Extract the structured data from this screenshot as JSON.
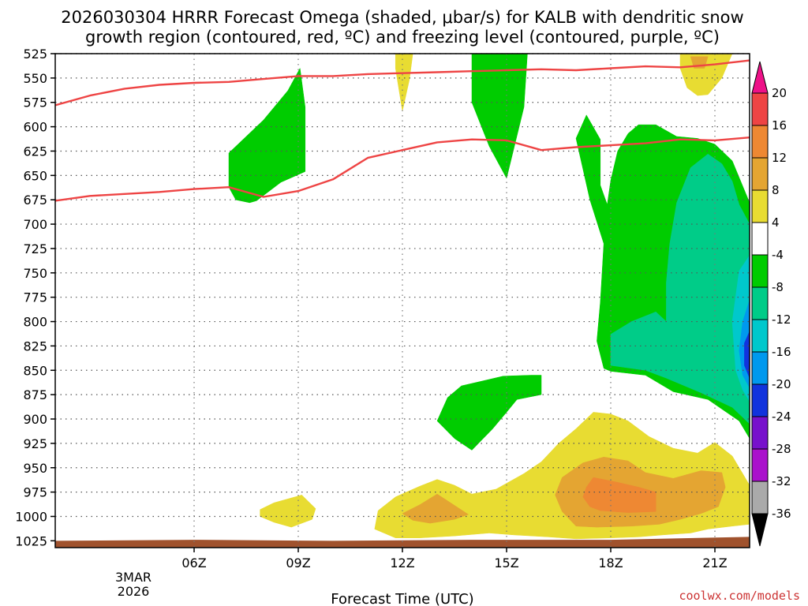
{
  "chart_data": {
    "type": "contour",
    "title_lines": [
      "2026030304 HRRR Forecast Omega (shaded, μbar/s) for KALB with dendritic snow",
      "growth region (contoured, red, ºC) and freezing level (contoured, purple, ºC)"
    ],
    "xlabel": "Forecast Time (UTC)",
    "x_ticks": [
      "06Z",
      "09Z",
      "12Z",
      "15Z",
      "18Z",
      "21Z"
    ],
    "x_tick_hours": [
      6,
      9,
      12,
      15,
      18,
      21
    ],
    "x_range_hours": [
      2,
      22
    ],
    "date_label_lines": [
      "3MAR",
      "2026"
    ],
    "y_levels_hpa": [
      525,
      550,
      575,
      600,
      625,
      650,
      675,
      700,
      725,
      750,
      775,
      800,
      825,
      850,
      875,
      900,
      925,
      950,
      975,
      1000,
      1025
    ],
    "y_range_hpa": [
      525,
      1032
    ],
    "grid": true,
    "colorbar": {
      "labels": [
        "20",
        "16",
        "12",
        "8",
        "4",
        "-4",
        "-8",
        "-12",
        "-16",
        "-20",
        "-24",
        "-28",
        "-32",
        "-36"
      ],
      "bins": [
        {
          "range": [
            16,
            20
          ],
          "color": "#ee4444"
        },
        {
          "range": [
            12,
            16
          ],
          "color": "#ee8833"
        },
        {
          "range": [
            8,
            12
          ],
          "color": "#e4a532"
        },
        {
          "range": [
            4,
            8
          ],
          "color": "#e8dc32"
        },
        {
          "range": [
            -4,
            4
          ],
          "color": "#ffffff"
        },
        {
          "range": [
            -8,
            -4
          ],
          "color": "#00cc00"
        },
        {
          "range": [
            -12,
            -8
          ],
          "color": "#00cc88"
        },
        {
          "range": [
            -16,
            -12
          ],
          "color": "#00c8cc"
        },
        {
          "range": [
            -20,
            -16
          ],
          "color": "#0099ee"
        },
        {
          "range": [
            -24,
            -20
          ],
          "color": "#1133dd"
        },
        {
          "range": [
            -28,
            -24
          ],
          "color": "#7711cc"
        },
        {
          "range": [
            -32,
            -28
          ],
          "color": "#aa11cc"
        },
        {
          "range": [
            -36,
            -32
          ],
          "color": "#aaaaaa"
        }
      ],
      "top_arrow_color": "#ee1188",
      "bottom_arrow_color": "#000000"
    },
    "regions": [
      {
        "name": "green-upper-left",
        "value_bin": "-8 to -4",
        "color": "#00cc00",
        "points": [
          [
            7.0,
            662
          ],
          [
            7.0,
            627
          ],
          [
            8.0,
            593
          ],
          [
            8.7,
            563
          ],
          [
            9.05,
            540
          ],
          [
            9.2,
            580
          ],
          [
            9.2,
            646
          ],
          [
            8.5,
            657
          ],
          [
            7.8,
            676
          ],
          [
            7.6,
            678
          ],
          [
            7.2,
            675
          ]
        ]
      },
      {
        "name": "yellow-upper-12z",
        "value_bin": "4 to 8",
        "color": "#e8dc32",
        "points": [
          [
            11.8,
            525
          ],
          [
            12.3,
            525
          ],
          [
            12.2,
            552
          ],
          [
            12.0,
            584
          ],
          [
            11.8,
            540
          ]
        ]
      },
      {
        "name": "green-upper-15z",
        "value_bin": "-8 to -4",
        "color": "#00cc00",
        "points": [
          [
            14.0,
            525
          ],
          [
            15.6,
            525
          ],
          [
            15.5,
            580
          ],
          [
            15.0,
            653
          ],
          [
            14.5,
            620
          ],
          [
            14.0,
            575
          ]
        ]
      },
      {
        "name": "yellow-upper-20z",
        "value_bin": "4 to 8",
        "color": "#e8dc32",
        "points": [
          [
            20.0,
            525
          ],
          [
            21.5,
            525
          ],
          [
            21.2,
            550
          ],
          [
            20.8,
            567
          ],
          [
            20.5,
            568
          ],
          [
            20.2,
            560
          ],
          [
            20.0,
            540
          ]
        ]
      },
      {
        "name": "orange-upper-20z",
        "value_bin": "8 to 12",
        "color": "#e4a532",
        "points": [
          [
            20.3,
            528
          ],
          [
            20.8,
            528
          ],
          [
            20.7,
            540
          ],
          [
            20.4,
            540
          ]
        ]
      },
      {
        "name": "green-right",
        "value_bin": "-8 to -4",
        "color": "#00cc00",
        "points": [
          [
            17.0,
            612
          ],
          [
            17.3,
            588
          ],
          [
            17.7,
            613
          ],
          [
            17.7,
            660
          ],
          [
            17.9,
            680
          ],
          [
            18.0,
            655
          ],
          [
            18.2,
            625
          ],
          [
            18.5,
            607
          ],
          [
            18.8,
            598
          ],
          [
            19.3,
            598
          ],
          [
            19.9,
            610
          ],
          [
            20.5,
            612
          ],
          [
            21.0,
            618
          ],
          [
            21.5,
            635
          ],
          [
            22.0,
            678
          ],
          [
            22.0,
            920
          ],
          [
            21.7,
            902
          ],
          [
            20.8,
            880
          ],
          [
            19.8,
            872
          ],
          [
            19.0,
            855
          ],
          [
            18.0,
            851
          ],
          [
            17.8,
            848
          ],
          [
            17.6,
            820
          ],
          [
            17.7,
            780
          ],
          [
            17.8,
            720
          ],
          [
            17.4,
            675
          ]
        ]
      },
      {
        "name": "teal-right",
        "value_bin": "-12 to -8",
        "color": "#00cc88",
        "points": [
          [
            19.6,
            800
          ],
          [
            19.3,
            790
          ],
          [
            18.6,
            800
          ],
          [
            18.0,
            813
          ],
          [
            18.0,
            845
          ],
          [
            19.0,
            850
          ],
          [
            19.6,
            858
          ],
          [
            20.6,
            873
          ],
          [
            21.5,
            888
          ],
          [
            22.0,
            905
          ],
          [
            22.0,
            700
          ],
          [
            21.7,
            680
          ],
          [
            21.5,
            656
          ],
          [
            21.2,
            638
          ],
          [
            20.8,
            628
          ],
          [
            20.3,
            642
          ],
          [
            19.9,
            678
          ],
          [
            19.7,
            720
          ],
          [
            19.6,
            760
          ]
        ]
      },
      {
        "name": "cyan-right",
        "value_bin": "-16 to -12",
        "color": "#00c8cc",
        "points": [
          [
            22.0,
            732
          ],
          [
            21.7,
            748
          ],
          [
            21.5,
            800
          ],
          [
            21.6,
            850
          ],
          [
            21.8,
            870
          ],
          [
            22.0,
            882
          ]
        ]
      },
      {
        "name": "blue-right",
        "value_bin": "-20 to -16",
        "color": "#0099ee",
        "points": [
          [
            22.0,
            778
          ],
          [
            21.8,
            800
          ],
          [
            21.7,
            830
          ],
          [
            21.8,
            855
          ],
          [
            22.0,
            868
          ]
        ]
      },
      {
        "name": "navy-right",
        "value_bin": "-24 to -20",
        "color": "#1133dd",
        "points": [
          [
            22.0,
            810
          ],
          [
            21.85,
            822
          ],
          [
            21.85,
            845
          ],
          [
            22.0,
            858
          ]
        ]
      },
      {
        "name": "green-lower-mid",
        "value_bin": "-8 to -4",
        "color": "#00cc00",
        "points": [
          [
            13.0,
            902
          ],
          [
            13.3,
            878
          ],
          [
            13.7,
            866
          ],
          [
            14.3,
            861
          ],
          [
            14.9,
            856
          ],
          [
            15.7,
            855
          ],
          [
            16.0,
            855
          ],
          [
            16.0,
            875
          ],
          [
            15.3,
            880
          ],
          [
            15.0,
            893
          ],
          [
            14.6,
            910
          ],
          [
            14.0,
            932
          ],
          [
            13.5,
            920
          ]
        ]
      },
      {
        "name": "yellow-low-left",
        "value_bin": "4 to 8",
        "color": "#e8dc32",
        "points": [
          [
            7.9,
            993
          ],
          [
            8.3,
            986
          ],
          [
            9.0,
            979
          ],
          [
            9.1,
            978
          ],
          [
            9.5,
            992
          ],
          [
            9.4,
            1003
          ],
          [
            8.8,
            1011
          ],
          [
            8.3,
            1006
          ],
          [
            7.9,
            1000
          ]
        ]
      },
      {
        "name": "yellow-low-main",
        "value_bin": "4 to 8",
        "color": "#e8dc32",
        "points": [
          [
            11.3,
            994
          ],
          [
            11.8,
            980
          ],
          [
            12.5,
            969
          ],
          [
            13.0,
            962
          ],
          [
            13.5,
            968
          ],
          [
            14.0,
            977
          ],
          [
            14.7,
            972
          ],
          [
            15.5,
            956
          ],
          [
            16.0,
            944
          ],
          [
            16.5,
            925
          ],
          [
            17.0,
            910
          ],
          [
            17.5,
            893
          ],
          [
            18.0,
            895
          ],
          [
            18.5,
            902
          ],
          [
            19.1,
            918
          ],
          [
            19.8,
            930
          ],
          [
            20.5,
            935
          ],
          [
            21.0,
            924
          ],
          [
            21.5,
            938
          ],
          [
            22.0,
            968
          ],
          [
            22.0,
            1008
          ],
          [
            21.5,
            1010
          ],
          [
            20.8,
            1013
          ],
          [
            20.3,
            1017
          ],
          [
            19.5,
            1019
          ],
          [
            18.8,
            1021
          ],
          [
            18.0,
            1022
          ],
          [
            17.0,
            1023
          ],
          [
            16.2,
            1021
          ],
          [
            15.2,
            1019
          ],
          [
            14.5,
            1017
          ],
          [
            13.5,
            1020
          ],
          [
            12.5,
            1022
          ],
          [
            11.8,
            1022
          ],
          [
            11.2,
            1013
          ]
        ]
      },
      {
        "name": "orange-low-13z",
        "value_bin": "8 to 12",
        "color": "#e4a532",
        "points": [
          [
            12.0,
            997
          ],
          [
            12.5,
            988
          ],
          [
            13.0,
            977
          ],
          [
            13.3,
            984
          ],
          [
            13.9,
            998
          ],
          [
            13.5,
            1003
          ],
          [
            12.8,
            1007
          ],
          [
            12.3,
            1004
          ]
        ]
      },
      {
        "name": "orange-low-18z",
        "value_bin": "8 to 12",
        "color": "#e4a532",
        "points": [
          [
            16.6,
            960
          ],
          [
            17.2,
            945
          ],
          [
            17.8,
            939
          ],
          [
            18.5,
            943
          ],
          [
            19.0,
            955
          ],
          [
            19.8,
            961
          ],
          [
            20.6,
            953
          ],
          [
            21.2,
            955
          ],
          [
            21.3,
            970
          ],
          [
            21.1,
            990
          ],
          [
            20.6,
            997
          ],
          [
            20.0,
            1003
          ],
          [
            19.4,
            1008
          ],
          [
            18.6,
            1010
          ],
          [
            17.6,
            1011
          ],
          [
            17.0,
            1010
          ],
          [
            16.6,
            995
          ],
          [
            16.4,
            978
          ]
        ]
      },
      {
        "name": "orange-core-18z",
        "value_bin": "12 to 16",
        "color": "#ee8833",
        "points": [
          [
            17.3,
            970
          ],
          [
            17.5,
            960
          ],
          [
            18.2,
            965
          ],
          [
            18.8,
            970
          ],
          [
            19.3,
            975
          ],
          [
            19.3,
            995
          ],
          [
            18.5,
            996
          ],
          [
            17.7,
            994
          ],
          [
            17.4,
            990
          ],
          [
            17.2,
            980
          ]
        ]
      }
    ],
    "contours": [
      {
        "name": "upper-temp-line",
        "color": "#ee4444",
        "points": [
          [
            2.0,
            578
          ],
          [
            3.0,
            568
          ],
          [
            4.0,
            561
          ],
          [
            5.0,
            557
          ],
          [
            6.0,
            555
          ],
          [
            7.0,
            554
          ],
          [
            8.0,
            551
          ],
          [
            9.0,
            548
          ],
          [
            10.0,
            548
          ],
          [
            11.0,
            546
          ],
          [
            12.0,
            545
          ],
          [
            13.0,
            544
          ],
          [
            14.0,
            543
          ],
          [
            15.0,
            542
          ],
          [
            16.0,
            541
          ],
          [
            17.0,
            542
          ],
          [
            18.0,
            540
          ],
          [
            19.0,
            538
          ],
          [
            20.0,
            539
          ],
          [
            21.0,
            536
          ],
          [
            22.0,
            532
          ]
        ]
      },
      {
        "name": "lower-temp-line",
        "color": "#ee4444",
        "points": [
          [
            2.0,
            676
          ],
          [
            3.0,
            671
          ],
          [
            4.0,
            669
          ],
          [
            5.0,
            667
          ],
          [
            6.0,
            664
          ],
          [
            7.0,
            662
          ],
          [
            8.0,
            672
          ],
          [
            9.0,
            666
          ],
          [
            10.0,
            654
          ],
          [
            11.0,
            632
          ],
          [
            12.0,
            624
          ],
          [
            13.0,
            616
          ],
          [
            14.0,
            613
          ],
          [
            15.0,
            614
          ],
          [
            16.0,
            624
          ],
          [
            17.0,
            621
          ],
          [
            18.0,
            619
          ],
          [
            19.0,
            617
          ],
          [
            20.0,
            613
          ],
          [
            21.0,
            614
          ],
          [
            22.0,
            611
          ]
        ]
      }
    ],
    "terrain": {
      "color": "#a0522d",
      "points": [
        [
          2.0,
          1025
        ],
        [
          6.0,
          1024
        ],
        [
          10.0,
          1025
        ],
        [
          14.0,
          1024
        ],
        [
          18.0,
          1024
        ],
        [
          22.0,
          1021
        ]
      ]
    }
  },
  "footer": {
    "credit": "coolwx.com/models",
    "credit_color": "#cc3333"
  }
}
